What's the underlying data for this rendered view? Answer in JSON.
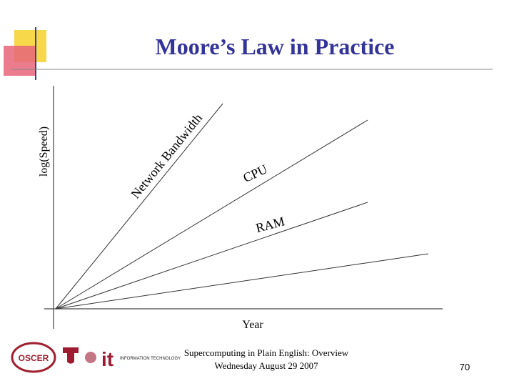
{
  "title": "Moore’s Law in Practice",
  "diagram": {
    "y_axis_label": "log(Speed)",
    "x_axis_label": "Year",
    "lines": [
      {
        "label": "Network Bandwidth"
      },
      {
        "label": "CPU"
      },
      {
        "label": "RAM"
      }
    ]
  },
  "footer": {
    "lines": [
      "Supercomputing in Plain English: Overview",
      "Wednesday August 29 2007"
    ],
    "page_number": "70"
  },
  "logos": {
    "oscer": "OSCER",
    "it": "it",
    "it_caption": "INFORMATION TECHNOLOGY"
  }
}
